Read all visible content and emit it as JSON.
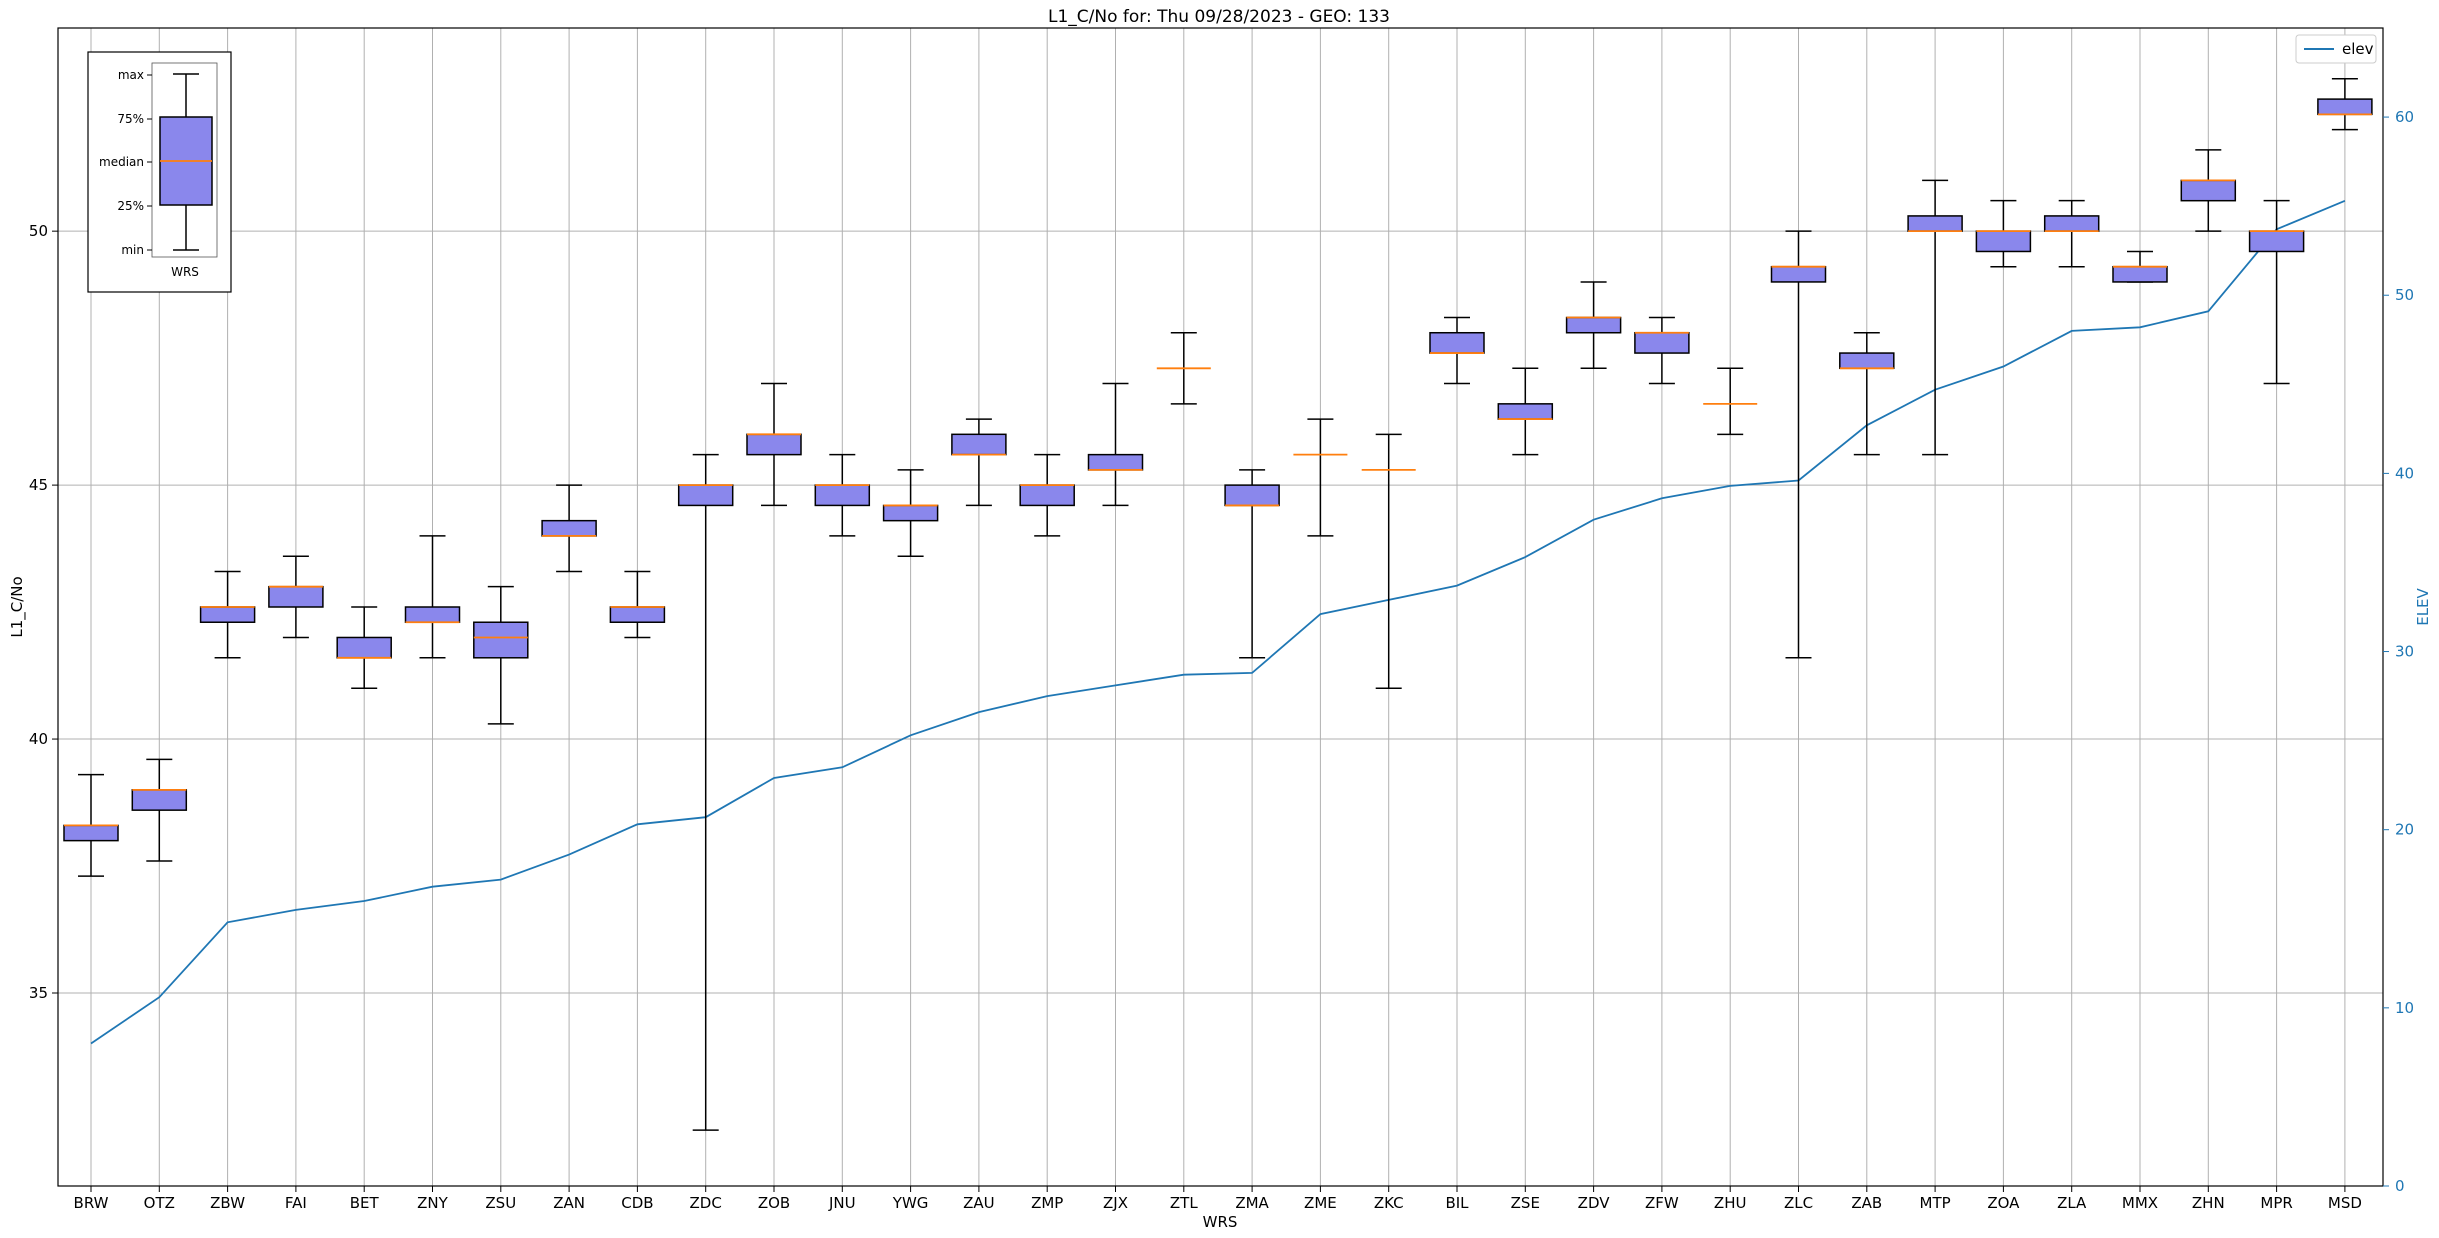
{
  "chart_data": {
    "type": "box",
    "title": "L1_C/No for: Thu 09/28/2023 - GEO: 133",
    "xlabel": "WRS",
    "ylabel": "L1_C/No",
    "y2label": "ELEV",
    "ylim": [
      31.2,
      54.0
    ],
    "y2lim": [
      0,
      65
    ],
    "yticks": [
      35,
      40,
      45,
      50
    ],
    "y2ticks": [
      0,
      10,
      20,
      30,
      40,
      50,
      60
    ],
    "grid": true,
    "colors": {
      "box_fill": "#8a87ec",
      "median": "#ff7f0e",
      "elev_line": "#1f77b4",
      "right_axis": "#1f77b4",
      "grid": "#b0b0b0"
    },
    "categories": [
      "BRW",
      "OTZ",
      "ZBW",
      "FAI",
      "BET",
      "ZNY",
      "ZSU",
      "ZAN",
      "CDB",
      "ZDC",
      "ZOB",
      "JNU",
      "YWG",
      "ZAU",
      "ZMP",
      "ZJX",
      "ZTL",
      "ZMA",
      "ZME",
      "ZKC",
      "BIL",
      "ZSE",
      "ZDV",
      "ZFW",
      "ZHU",
      "ZLC",
      "ZAB",
      "MTP",
      "ZOA",
      "ZLA",
      "MMX",
      "ZHN",
      "MPR",
      "MSD"
    ],
    "boxes": [
      {
        "min": 37.3,
        "q1": 38.0,
        "median": 38.3,
        "q3": 38.3,
        "max": 39.3
      },
      {
        "min": 37.6,
        "q1": 38.6,
        "median": 39.0,
        "q3": 39.0,
        "max": 39.6
      },
      {
        "min": 41.6,
        "q1": 42.3,
        "median": 42.6,
        "q3": 42.6,
        "max": 43.3
      },
      {
        "min": 42.0,
        "q1": 42.6,
        "median": 43.0,
        "q3": 43.0,
        "max": 43.6
      },
      {
        "min": 41.0,
        "q1": 41.6,
        "median": 41.6,
        "q3": 42.0,
        "max": 42.6
      },
      {
        "min": 41.6,
        "q1": 42.3,
        "median": 42.3,
        "q3": 42.6,
        "max": 44.0
      },
      {
        "min": 40.3,
        "q1": 41.6,
        "median": 42.0,
        "q3": 42.3,
        "max": 43.0
      },
      {
        "min": 43.3,
        "q1": 44.0,
        "median": 44.0,
        "q3": 44.3,
        "max": 45.0
      },
      {
        "min": 42.0,
        "q1": 42.3,
        "median": 42.6,
        "q3": 42.6,
        "max": 43.3
      },
      {
        "min": 32.3,
        "q1": 44.6,
        "median": 45.0,
        "q3": 45.0,
        "max": 45.6
      },
      {
        "min": 44.6,
        "q1": 45.6,
        "median": 46.0,
        "q3": 46.0,
        "max": 47.0
      },
      {
        "min": 44.0,
        "q1": 44.6,
        "median": 45.0,
        "q3": 45.0,
        "max": 45.6
      },
      {
        "min": 43.6,
        "q1": 44.3,
        "median": 44.6,
        "q3": 44.6,
        "max": 45.3
      },
      {
        "min": 44.6,
        "q1": 45.6,
        "median": 45.6,
        "q3": 46.0,
        "max": 46.3
      },
      {
        "min": 44.0,
        "q1": 44.6,
        "median": 45.0,
        "q3": 45.0,
        "max": 45.6
      },
      {
        "min": 44.6,
        "q1": 45.3,
        "median": 45.3,
        "q3": 45.6,
        "max": 47.0
      },
      {
        "min": 46.6,
        "q1": 47.3,
        "median": 47.3,
        "q3": 47.3,
        "max": 48.0
      },
      {
        "min": 41.6,
        "q1": 44.6,
        "median": 44.6,
        "q3": 45.0,
        "max": 45.3
      },
      {
        "min": 44.0,
        "q1": 45.6,
        "median": 45.6,
        "q3": 45.6,
        "max": 46.3
      },
      {
        "min": 41.0,
        "q1": 45.3,
        "median": 45.3,
        "q3": 45.3,
        "max": 46.0
      },
      {
        "min": 47.0,
        "q1": 47.6,
        "median": 47.6,
        "q3": 48.0,
        "max": 48.3
      },
      {
        "min": 45.6,
        "q1": 46.3,
        "median": 46.3,
        "q3": 46.6,
        "max": 47.3
      },
      {
        "min": 47.3,
        "q1": 48.0,
        "median": 48.3,
        "q3": 48.3,
        "max": 49.0
      },
      {
        "min": 47.0,
        "q1": 47.6,
        "median": 48.0,
        "q3": 48.0,
        "max": 48.3
      },
      {
        "min": 46.0,
        "q1": 46.6,
        "median": 46.6,
        "q3": 46.6,
        "max": 47.3
      },
      {
        "min": 41.6,
        "q1": 49.0,
        "median": 49.3,
        "q3": 49.3,
        "max": 50.0
      },
      {
        "min": 45.6,
        "q1": 47.3,
        "median": 47.3,
        "q3": 47.6,
        "max": 48.0
      },
      {
        "min": 45.6,
        "q1": 50.0,
        "median": 50.0,
        "q3": 50.3,
        "max": 51.0
      },
      {
        "min": 49.3,
        "q1": 49.6,
        "median": 50.0,
        "q3": 50.0,
        "max": 50.6
      },
      {
        "min": 49.3,
        "q1": 50.0,
        "median": 50.0,
        "q3": 50.3,
        "max": 50.6
      },
      {
        "min": 49.0,
        "q1": 49.0,
        "median": 49.3,
        "q3": 49.3,
        "max": 49.6
      },
      {
        "min": 50.0,
        "q1": 50.6,
        "median": 51.0,
        "q3": 51.0,
        "max": 51.6
      },
      {
        "min": 47.0,
        "q1": 49.6,
        "median": 50.0,
        "q3": 50.0,
        "max": 50.6
      },
      {
        "min": 52.0,
        "q1": 52.3,
        "median": 52.3,
        "q3": 52.6,
        "max": 53.0
      }
    ],
    "series": [
      {
        "name": "elev",
        "axis": "right",
        "values": [
          8.0,
          10.6,
          14.8,
          15.5,
          16.0,
          16.8,
          17.2,
          18.6,
          20.3,
          20.7,
          22.9,
          23.5,
          25.3,
          26.6,
          27.5,
          28.1,
          28.7,
          28.8,
          32.1,
          32.9,
          33.7,
          35.3,
          37.4,
          38.6,
          39.3,
          39.6,
          42.7,
          44.7,
          46.0,
          48.0,
          48.2,
          49.1,
          53.7,
          55.3
        ]
      }
    ]
  },
  "legend": {
    "entries": [
      {
        "label": "elev",
        "color": "#1f77b4"
      }
    ]
  },
  "key_inset": {
    "labels": [
      "max",
      "75%",
      "median",
      "25%",
      "min"
    ],
    "xlabel": "WRS"
  }
}
